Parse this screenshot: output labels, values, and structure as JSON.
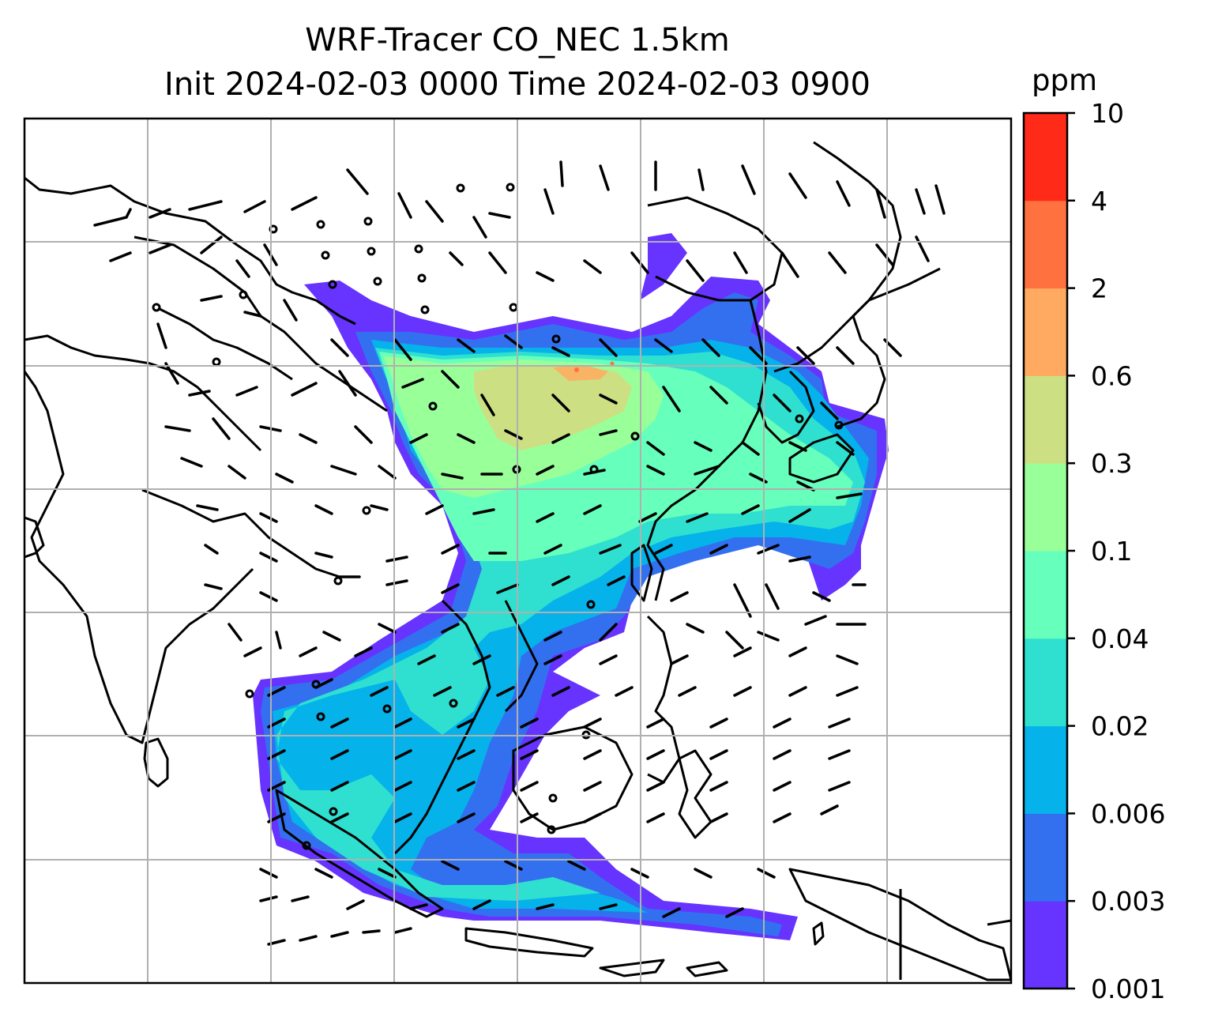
{
  "title": {
    "line1": "WRF-Tracer CO_NEC 1.5km",
    "line2": "Init 2024-02-03 0000 Time 2024-02-03 0900"
  },
  "colorbar": {
    "units": "ppm",
    "levels": [
      "0.001",
      "0.003",
      "0.006",
      "0.02",
      "0.04",
      "0.1",
      "0.3",
      "0.6",
      "2",
      "4",
      "10"
    ],
    "colors": [
      "#6633ff",
      "#3370f0",
      "#05b2ea",
      "#2fe0d0",
      "#66ffbb",
      "#99ff99",
      "#cce083",
      "#ffaa60",
      "#ff7240",
      "#ff2a18"
    ]
  },
  "map": {
    "projection": "regional lat-lon grid, East/Southeast Asia",
    "gridlines": true,
    "overlays": [
      "coastlines",
      "country borders",
      "wind barbs",
      "CO tracer concentration fill"
    ]
  }
}
